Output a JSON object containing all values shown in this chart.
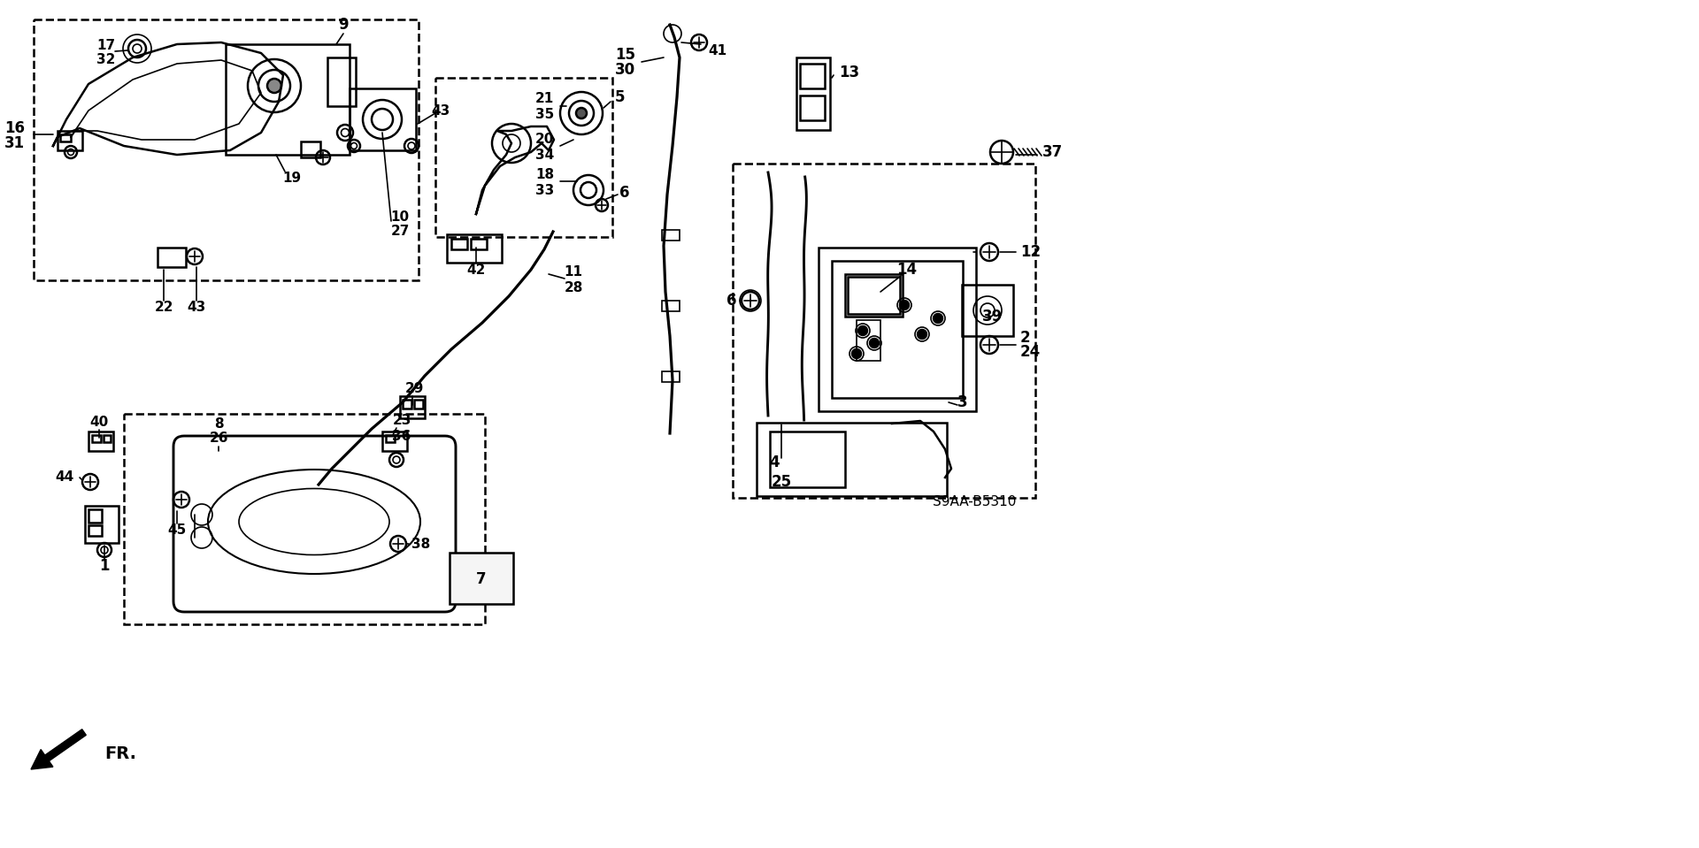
{
  "background_color": "#ffffff",
  "line_color": "#000000",
  "part_code": "S9AA-B5310",
  "fig_width": 19.2,
  "fig_height": 9.59,
  "dpi": 100
}
